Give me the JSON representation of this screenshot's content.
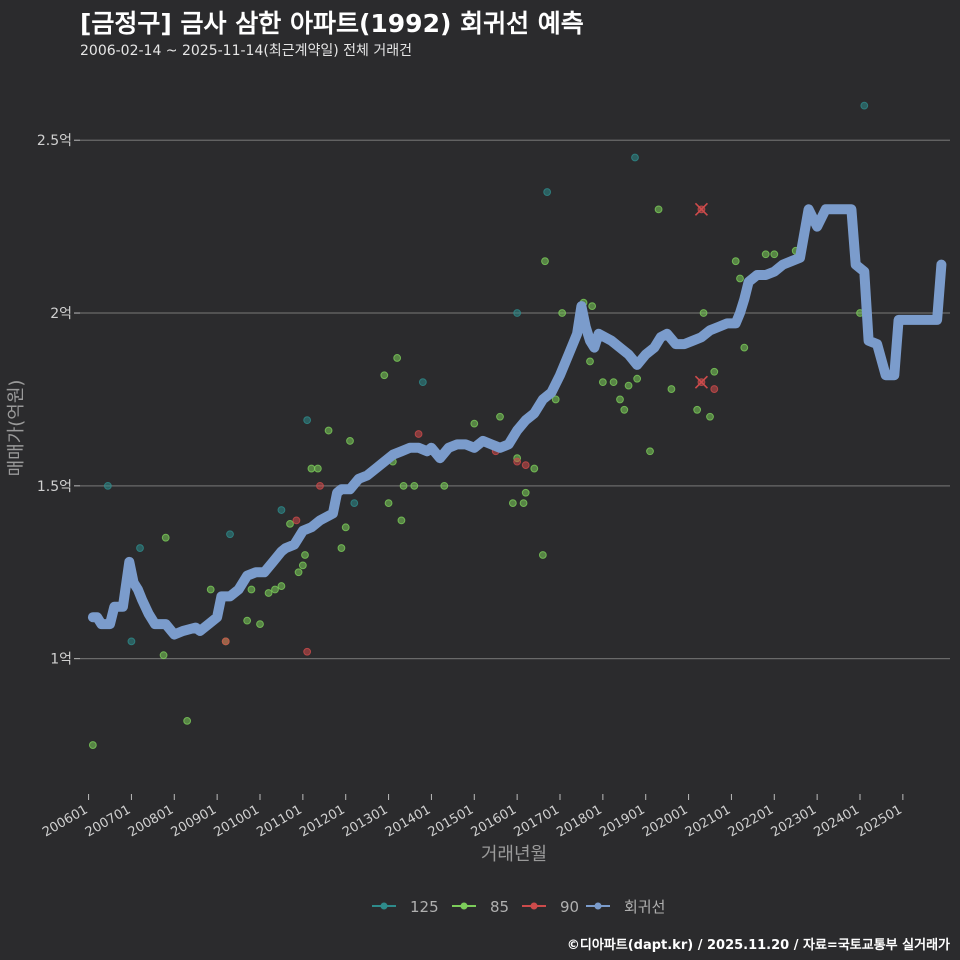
{
  "header": {
    "title": "[금정구] 금사 삼한 아파트(1992) 회귀선 예측",
    "subtitle": "2006-02-14 ~ 2025-11-14(최근계약일) 전체 거래건"
  },
  "caption": "©디아파트(dapt.kr) / 2025.11.20 / 자료=국토교통부 실거래가",
  "colors": {
    "background": "#2b2b2d",
    "gridline": "#6a6a6a",
    "s125": "#2e8b8b",
    "s85": "#7ccd5a",
    "s90": "#cd4b4b",
    "regression": "#7b9ccc"
  },
  "chart_data": {
    "type": "scatter",
    "title": "[금정구] 금사 삼한 아파트(1992) 회귀선 예측",
    "xlabel": "거래년월",
    "ylabel": "매매가(억원)",
    "xlim": [
      2005.8,
      2026.1
    ],
    "ylim": [
      0.62,
      2.68
    ],
    "x_tick_values": [
      2006,
      2007,
      2008,
      2009,
      2010,
      2011,
      2012,
      2013,
      2014,
      2015,
      2016,
      2017,
      2018,
      2019,
      2020,
      2021,
      2022,
      2023,
      2024,
      2025
    ],
    "x_tick_labels": [
      "200601",
      "200701",
      "200801",
      "200901",
      "201001",
      "201101",
      "201201",
      "201301",
      "201401",
      "201501",
      "201601",
      "201701",
      "201801",
      "201901",
      "202001",
      "202101",
      "202201",
      "202301",
      "202401",
      "202501"
    ],
    "y_tick_values": [
      1.0,
      1.5,
      2.0,
      2.5
    ],
    "y_tick_labels": [
      "1억",
      "1.5억",
      "2억",
      "2.5억"
    ],
    "legend": {
      "position": "bottom",
      "items": [
        {
          "key": "s125",
          "label": "125"
        },
        {
          "key": "s85",
          "label": "85"
        },
        {
          "key": "s90",
          "label": "90"
        },
        {
          "key": "regression",
          "label": "회귀선"
        }
      ]
    },
    "series": [
      {
        "name": "125",
        "color_key": "s125",
        "points": [
          [
            2006.45,
            1.5
          ],
          [
            2007.0,
            1.05
          ],
          [
            2007.2,
            1.32
          ],
          [
            2009.3,
            1.36
          ],
          [
            2010.5,
            1.43
          ],
          [
            2011.1,
            1.69
          ],
          [
            2012.2,
            1.45
          ],
          [
            2013.8,
            1.8
          ],
          [
            2016.0,
            2.0
          ],
          [
            2016.7,
            2.35
          ],
          [
            2018.75,
            2.45
          ],
          [
            2024.1,
            2.6
          ]
        ]
      },
      {
        "name": "85",
        "color_key": "s85",
        "points": [
          [
            2006.1,
            0.75
          ],
          [
            2007.75,
            1.01
          ],
          [
            2008.3,
            0.82
          ],
          [
            2007.8,
            1.35
          ],
          [
            2008.85,
            1.2
          ],
          [
            2009.2,
            1.05
          ],
          [
            2009.7,
            1.11
          ],
          [
            2009.8,
            1.2
          ],
          [
            2010.0,
            1.1
          ],
          [
            2010.2,
            1.19
          ],
          [
            2010.35,
            1.2
          ],
          [
            2010.5,
            1.21
          ],
          [
            2010.7,
            1.39
          ],
          [
            2010.9,
            1.25
          ],
          [
            2011.0,
            1.27
          ],
          [
            2011.05,
            1.3
          ],
          [
            2011.2,
            1.55
          ],
          [
            2011.35,
            1.55
          ],
          [
            2011.6,
            1.66
          ],
          [
            2011.9,
            1.32
          ],
          [
            2012.0,
            1.38
          ],
          [
            2012.1,
            1.63
          ],
          [
            2012.9,
            1.82
          ],
          [
            2013.0,
            1.45
          ],
          [
            2013.1,
            1.57
          ],
          [
            2013.2,
            1.87
          ],
          [
            2013.3,
            1.4
          ],
          [
            2013.35,
            1.5
          ],
          [
            2013.6,
            1.5
          ],
          [
            2014.3,
            1.5
          ],
          [
            2015.0,
            1.68
          ],
          [
            2015.1,
            1.62
          ],
          [
            2015.6,
            1.7
          ],
          [
            2015.9,
            1.45
          ],
          [
            2016.0,
            1.58
          ],
          [
            2016.15,
            1.45
          ],
          [
            2016.2,
            1.48
          ],
          [
            2016.4,
            1.55
          ],
          [
            2016.6,
            1.3
          ],
          [
            2016.65,
            2.15
          ],
          [
            2016.9,
            1.75
          ],
          [
            2017.05,
            2.0
          ],
          [
            2017.55,
            2.03
          ],
          [
            2017.75,
            2.02
          ],
          [
            2017.7,
            1.86
          ],
          [
            2018.0,
            1.8
          ],
          [
            2018.25,
            1.8
          ],
          [
            2018.4,
            1.75
          ],
          [
            2018.5,
            1.72
          ],
          [
            2018.6,
            1.79
          ],
          [
            2018.8,
            1.81
          ],
          [
            2019.1,
            1.6
          ],
          [
            2019.3,
            2.3
          ],
          [
            2019.6,
            1.78
          ],
          [
            2020.2,
            1.72
          ],
          [
            2020.35,
            2.0
          ],
          [
            2020.5,
            1.7
          ],
          [
            2020.6,
            1.83
          ],
          [
            2021.1,
            2.15
          ],
          [
            2021.2,
            2.1
          ],
          [
            2021.3,
            1.9
          ],
          [
            2021.8,
            2.17
          ],
          [
            2022.0,
            2.17
          ],
          [
            2022.5,
            2.18
          ],
          [
            2024.0,
            2.0
          ]
        ]
      },
      {
        "name": "90",
        "color_key": "s90",
        "points": [
          [
            2009.2,
            1.05
          ],
          [
            2010.85,
            1.4
          ],
          [
            2011.1,
            1.02
          ],
          [
            2011.4,
            1.5
          ],
          [
            2013.7,
            1.65
          ],
          [
            2015.5,
            1.6
          ],
          [
            2016.0,
            1.57
          ],
          [
            2016.2,
            1.56
          ],
          [
            2020.3,
            2.3
          ],
          [
            2020.3,
            1.8
          ],
          [
            2020.6,
            1.78
          ]
        ]
      },
      {
        "name": "회귀선",
        "color_key": "regression",
        "points": [
          [
            2006.1,
            1.12
          ],
          [
            2006.2,
            1.12
          ],
          [
            2006.3,
            1.1
          ],
          [
            2006.5,
            1.1
          ],
          [
            2006.6,
            1.15
          ],
          [
            2006.8,
            1.15
          ],
          [
            2006.95,
            1.28
          ],
          [
            2007.05,
            1.22
          ],
          [
            2007.15,
            1.2
          ],
          [
            2007.25,
            1.17
          ],
          [
            2007.4,
            1.13
          ],
          [
            2007.55,
            1.1
          ],
          [
            2007.8,
            1.1
          ],
          [
            2008.0,
            1.07
          ],
          [
            2008.2,
            1.08
          ],
          [
            2008.5,
            1.09
          ],
          [
            2008.6,
            1.08
          ],
          [
            2008.8,
            1.1
          ],
          [
            2009.0,
            1.12
          ],
          [
            2009.1,
            1.18
          ],
          [
            2009.3,
            1.18
          ],
          [
            2009.5,
            1.2
          ],
          [
            2009.7,
            1.24
          ],
          [
            2009.9,
            1.25
          ],
          [
            2010.1,
            1.25
          ],
          [
            2010.3,
            1.28
          ],
          [
            2010.5,
            1.31
          ],
          [
            2010.6,
            1.32
          ],
          [
            2010.8,
            1.33
          ],
          [
            2011.0,
            1.37
          ],
          [
            2011.2,
            1.38
          ],
          [
            2011.4,
            1.4
          ],
          [
            2011.7,
            1.42
          ],
          [
            2011.8,
            1.48
          ],
          [
            2011.9,
            1.49
          ],
          [
            2012.1,
            1.49
          ],
          [
            2012.3,
            1.52
          ],
          [
            2012.5,
            1.53
          ],
          [
            2012.7,
            1.55
          ],
          [
            2012.9,
            1.57
          ],
          [
            2013.1,
            1.59
          ],
          [
            2013.3,
            1.6
          ],
          [
            2013.5,
            1.61
          ],
          [
            2013.7,
            1.61
          ],
          [
            2013.9,
            1.6
          ],
          [
            2014.0,
            1.61
          ],
          [
            2014.2,
            1.58
          ],
          [
            2014.4,
            1.61
          ],
          [
            2014.6,
            1.62
          ],
          [
            2014.8,
            1.62
          ],
          [
            2015.0,
            1.61
          ],
          [
            2015.2,
            1.63
          ],
          [
            2015.4,
            1.62
          ],
          [
            2015.6,
            1.61
          ],
          [
            2015.8,
            1.62
          ],
          [
            2016.0,
            1.66
          ],
          [
            2016.2,
            1.69
          ],
          [
            2016.4,
            1.71
          ],
          [
            2016.6,
            1.75
          ],
          [
            2016.8,
            1.77
          ],
          [
            2017.0,
            1.82
          ],
          [
            2017.2,
            1.88
          ],
          [
            2017.4,
            1.94
          ],
          [
            2017.5,
            2.02
          ],
          [
            2017.6,
            1.96
          ],
          [
            2017.7,
            1.92
          ],
          [
            2017.8,
            1.9
          ],
          [
            2017.9,
            1.94
          ],
          [
            2018.2,
            1.92
          ],
          [
            2018.4,
            1.9
          ],
          [
            2018.6,
            1.88
          ],
          [
            2018.8,
            1.85
          ],
          [
            2019.0,
            1.88
          ],
          [
            2019.2,
            1.9
          ],
          [
            2019.35,
            1.93
          ],
          [
            2019.5,
            1.94
          ],
          [
            2019.7,
            1.91
          ],
          [
            2019.9,
            1.91
          ],
          [
            2020.1,
            1.92
          ],
          [
            2020.3,
            1.93
          ],
          [
            2020.5,
            1.95
          ],
          [
            2020.7,
            1.96
          ],
          [
            2020.9,
            1.97
          ],
          [
            2021.1,
            1.97
          ],
          [
            2021.2,
            2.0
          ],
          [
            2021.3,
            2.04
          ],
          [
            2021.4,
            2.09
          ],
          [
            2021.6,
            2.11
          ],
          [
            2021.8,
            2.11
          ],
          [
            2022.0,
            2.12
          ],
          [
            2022.2,
            2.14
          ],
          [
            2022.4,
            2.15
          ],
          [
            2022.6,
            2.16
          ],
          [
            2022.8,
            2.3
          ],
          [
            2023.0,
            2.25
          ],
          [
            2023.2,
            2.3
          ],
          [
            2023.5,
            2.3
          ],
          [
            2023.8,
            2.3
          ],
          [
            2023.9,
            2.14
          ],
          [
            2024.1,
            2.12
          ],
          [
            2024.2,
            1.92
          ],
          [
            2024.4,
            1.91
          ],
          [
            2024.6,
            1.82
          ],
          [
            2024.8,
            1.82
          ],
          [
            2024.9,
            1.98
          ],
          [
            2025.2,
            1.98
          ],
          [
            2025.5,
            1.98
          ],
          [
            2025.8,
            1.98
          ],
          [
            2025.9,
            2.14
          ]
        ]
      }
    ]
  }
}
